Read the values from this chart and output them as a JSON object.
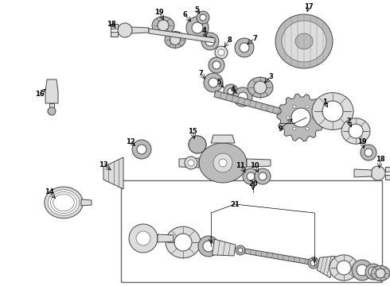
{
  "bg_color": "#ffffff",
  "fig_width": 4.9,
  "fig_height": 3.6,
  "dpi": 100,
  "gray1": "#444444",
  "gray2": "#888888",
  "gray3": "#bbbbbb",
  "gray4": "#dddddd",
  "lw_main": 0.7,
  "lw_thin": 0.4
}
